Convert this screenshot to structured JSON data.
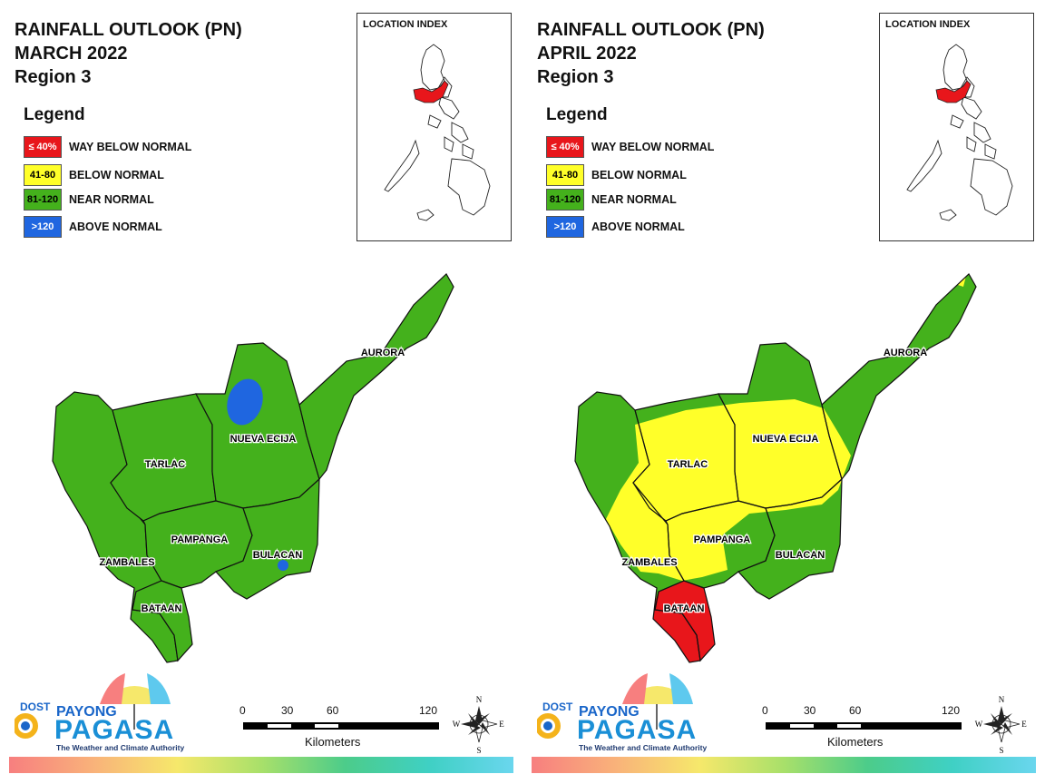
{
  "panels": [
    {
      "title": [
        "RAINFALL OUTLOOK (PN)",
        "MARCH 2022",
        "Region 3"
      ],
      "legend_title": "Legend",
      "legend": [
        {
          "swatch": "≤ 40%",
          "label": "WAY BELOW NORMAL",
          "color": "#e8161b",
          "text_color": "#ffffff"
        },
        {
          "swatch": "41-80",
          "label": "BELOW NORMAL",
          "color": "#ffff29",
          "text_color": "#000000"
        },
        {
          "swatch": "81-120",
          "label": "NEAR NORMAL",
          "color": "#44b11c",
          "text_color": "#000000"
        },
        {
          "swatch": ">120",
          "label": "ABOVE NORMAL",
          "color": "#1f66e0",
          "text_color": "#ffffff"
        }
      ],
      "location_index_title": "LOCATION INDEX",
      "provinces": [
        "AURORA",
        "NUEVA ECIJA",
        "TARLAC",
        "PAMPANGA",
        "BULACAN",
        "ZAMBALES",
        "BATAAN"
      ],
      "scale": {
        "ticks": [
          "0",
          "30",
          "60",
          "120"
        ],
        "unit": "Kilometers"
      },
      "compass": {
        "n": "N",
        "s": "S",
        "e": "E",
        "w": "W"
      },
      "logo": {
        "dost": "DOST",
        "payong": "PAYONG",
        "pagasa": "PAGASA",
        "tagline": "The Weather and Climate Authority"
      }
    },
    {
      "title": [
        "RAINFALL OUTLOOK (PN)",
        "APRIL 2022",
        "Region 3"
      ],
      "legend_title": "Legend",
      "legend": [
        {
          "swatch": "≤ 40%",
          "label": "WAY BELOW NORMAL",
          "color": "#e8161b",
          "text_color": "#ffffff"
        },
        {
          "swatch": "41-80",
          "label": "BELOW NORMAL",
          "color": "#ffff29",
          "text_color": "#000000"
        },
        {
          "swatch": "81-120",
          "label": "NEAR NORMAL",
          "color": "#44b11c",
          "text_color": "#000000"
        },
        {
          "swatch": ">120",
          "label": "ABOVE NORMAL",
          "color": "#1f66e0",
          "text_color": "#ffffff"
        }
      ],
      "location_index_title": "LOCATION INDEX",
      "provinces": [
        "AURORA",
        "NUEVA ECIJA",
        "TARLAC",
        "PAMPANGA",
        "BULACAN",
        "ZAMBALES",
        "BATAAN"
      ],
      "scale": {
        "ticks": [
          "0",
          "30",
          "60",
          "120"
        ],
        "unit": "Kilometers"
      },
      "compass": {
        "n": "N",
        "s": "S",
        "e": "E",
        "w": "W"
      },
      "logo": {
        "dost": "DOST",
        "payong": "PAYONG",
        "pagasa": "PAGASA",
        "tagline": "The Weather and Climate Authority"
      }
    }
  ]
}
